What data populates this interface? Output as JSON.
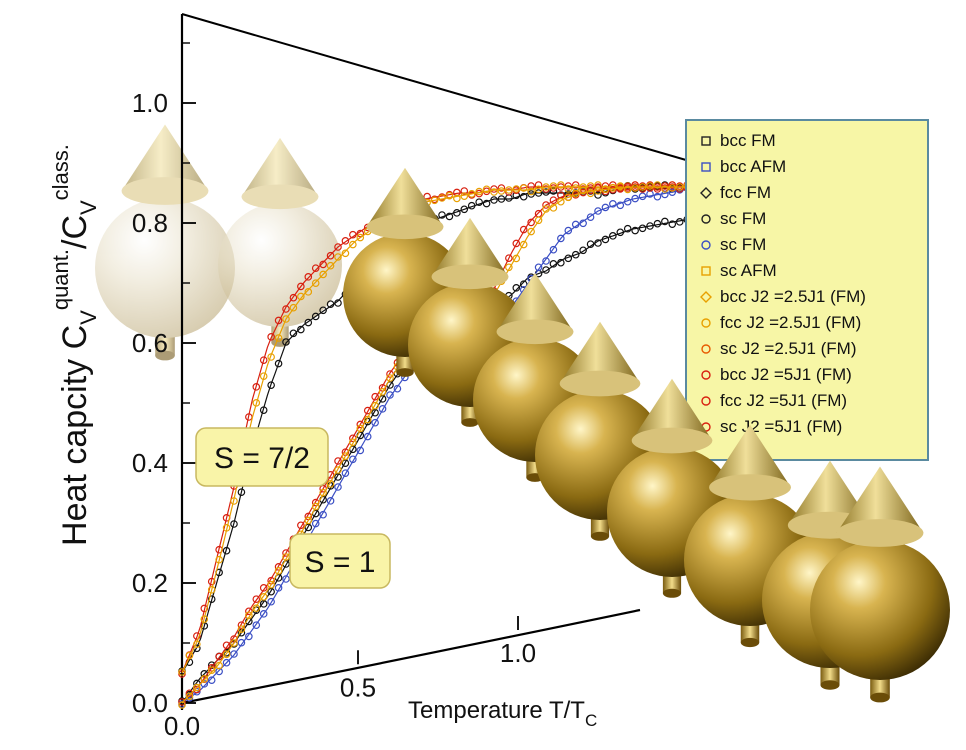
{
  "chart_data": {
    "type": "scatter",
    "title": "",
    "ylabel": {
      "base": "Heat capcity C",
      "sub1": "V",
      "sup1": "quant.",
      "mid": "/C",
      "sub2": "V",
      "sup2": "class."
    },
    "xlabel": {
      "base": "Temperature T/T",
      "sub": "C"
    },
    "ylim": [
      0,
      1.15
    ],
    "y_ticks": [
      "0.0",
      "0.2",
      "0.4",
      "0.6",
      "0.8",
      "1.0"
    ],
    "x_ticks": [
      "0.0",
      "0.5",
      "1.0"
    ],
    "callouts": [
      "S = 7/2",
      "S = 1"
    ],
    "legend_position": "top-right",
    "legend": [
      {
        "label": "bcc FM",
        "marker": "square",
        "color": "#222222"
      },
      {
        "label": "bcc AFM",
        "marker": "square",
        "color": "#3b4fc4"
      },
      {
        "label": "fcc FM",
        "marker": "diamond",
        "color": "#222222"
      },
      {
        "label": "sc FM",
        "marker": "circle",
        "color": "#222222"
      },
      {
        "label": "sc FM",
        "marker": "circle",
        "color": "#3b4fc4"
      },
      {
        "label": "sc AFM",
        "marker": "square",
        "color": "#e8a000"
      },
      {
        "label": "bcc J2 =2.5J1 (FM)",
        "marker": "diamond",
        "color": "#e8a000"
      },
      {
        "label": "fcc J2 =2.5J1 (FM)",
        "marker": "circle",
        "color": "#e8a000"
      },
      {
        "label": "sc J2 =2.5J1 (FM)",
        "marker": "circle",
        "color": "#e85a00"
      },
      {
        "label": "bcc J2 =5J1 (FM)",
        "marker": "circle",
        "color": "#d82010"
      },
      {
        "label": "fcc J2 =5J1 (FM)",
        "marker": "circle",
        "color": "#d82010"
      },
      {
        "label": "sc J2 =5J1 (FM)",
        "marker": "circle",
        "color": "#d82010"
      }
    ],
    "series_groups": [
      {
        "spin": "S = 7/2",
        "x": [
          0.0,
          0.05,
          0.1,
          0.15,
          0.2,
          0.25,
          0.3,
          0.35,
          0.4,
          0.45,
          0.5,
          0.55,
          0.6,
          0.65,
          0.7,
          0.75,
          0.8,
          0.85,
          0.9,
          0.95,
          1.0,
          1.05,
          1.1,
          1.2,
          1.3,
          1.4,
          1.5
        ],
        "series": [
          {
            "color": "#111111",
            "values": [
              0.05,
              0.1,
              0.2,
              0.3,
              0.42,
              0.52,
              0.6,
              0.63,
              0.65,
              0.67,
              0.7,
              0.73,
              0.76,
              0.78,
              0.8,
              0.81,
              0.82,
              0.83,
              0.84,
              0.84,
              0.85,
              0.85,
              0.85,
              0.85,
              0.86,
              0.86,
              0.86
            ]
          },
          {
            "color": "#d82010",
            "values": [
              0.05,
              0.12,
              0.24,
              0.36,
              0.5,
              0.6,
              0.66,
              0.7,
              0.73,
              0.76,
              0.78,
              0.8,
              0.82,
              0.83,
              0.84,
              0.845,
              0.85,
              0.85,
              0.855,
              0.855,
              0.86,
              0.86,
              0.86,
              0.86,
              0.86,
              0.86,
              0.86
            ]
          },
          {
            "color": "#e8a000",
            "values": [
              0.05,
              0.11,
              0.22,
              0.34,
              0.47,
              0.57,
              0.64,
              0.68,
              0.71,
              0.74,
              0.77,
              0.79,
              0.81,
              0.825,
              0.835,
              0.84,
              0.845,
              0.85,
              0.855,
              0.855,
              0.855,
              0.86,
              0.86,
              0.86,
              0.86,
              0.86,
              0.86
            ]
          }
        ]
      },
      {
        "spin": "S = 1",
        "x": [
          0.0,
          0.05,
          0.1,
          0.15,
          0.2,
          0.25,
          0.3,
          0.35,
          0.4,
          0.45,
          0.5,
          0.55,
          0.6,
          0.65,
          0.7,
          0.75,
          0.8,
          0.85,
          0.9,
          0.95,
          1.0,
          1.05,
          1.1,
          1.15,
          1.2,
          1.3,
          1.4,
          1.5
        ],
        "series": [
          {
            "color": "#111111",
            "values": [
              0.0,
              0.04,
              0.07,
              0.1,
              0.14,
              0.18,
              0.23,
              0.28,
              0.33,
              0.38,
              0.43,
              0.48,
              0.53,
              0.57,
              0.6,
              0.62,
              0.63,
              0.64,
              0.66,
              0.68,
              0.71,
              0.72,
              0.74,
              0.75,
              0.77,
              0.79,
              0.8,
              0.81
            ]
          },
          {
            "color": "#3b4fc4",
            "values": [
              0.0,
              0.02,
              0.05,
              0.08,
              0.12,
              0.16,
              0.21,
              0.26,
              0.31,
              0.36,
              0.41,
              0.46,
              0.51,
              0.55,
              0.58,
              0.61,
              0.62,
              0.63,
              0.64,
              0.66,
              0.7,
              0.74,
              0.78,
              0.8,
              0.82,
              0.84,
              0.85,
              0.86
            ]
          },
          {
            "color": "#d82010",
            "values": [
              0.0,
              0.03,
              0.07,
              0.11,
              0.16,
              0.2,
              0.25,
              0.3,
              0.35,
              0.4,
              0.45,
              0.5,
              0.55,
              0.59,
              0.62,
              0.64,
              0.65,
              0.66,
              0.69,
              0.75,
              0.8,
              0.83,
              0.845,
              0.85,
              0.855,
              0.86,
              0.86,
              0.86
            ]
          },
          {
            "color": "#e8a000",
            "values": [
              0.0,
              0.03,
              0.06,
              0.1,
              0.15,
              0.19,
              0.24,
              0.29,
              0.34,
              0.39,
              0.44,
              0.49,
              0.54,
              0.58,
              0.61,
              0.63,
              0.64,
              0.65,
              0.68,
              0.73,
              0.78,
              0.82,
              0.84,
              0.85,
              0.855,
              0.86,
              0.86,
              0.86
            ]
          }
        ]
      }
    ]
  },
  "decoration": {
    "theme_color": "#b8962e",
    "legend_bg": "#f7f6a6",
    "callout_bg": "#f9f4a8"
  }
}
